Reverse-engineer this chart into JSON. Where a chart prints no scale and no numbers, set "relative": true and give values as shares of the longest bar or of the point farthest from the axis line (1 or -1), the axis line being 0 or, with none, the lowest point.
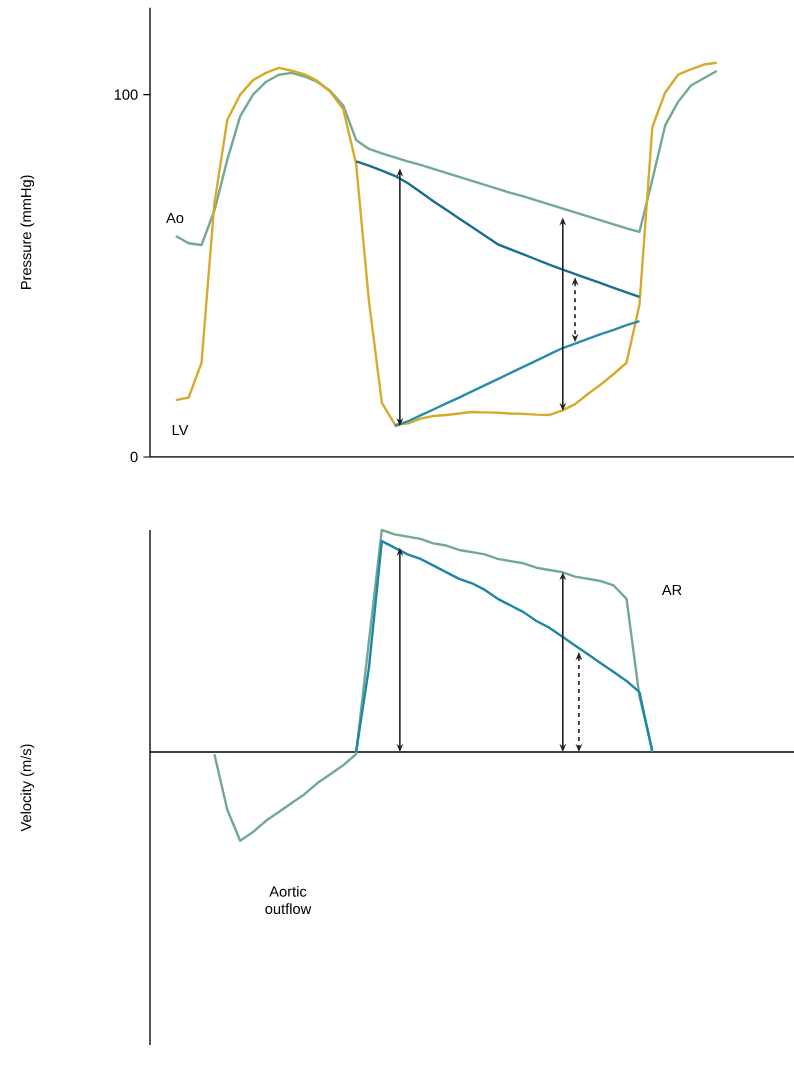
{
  "chart_data": [
    {
      "type": "line",
      "ylabel": "Pressure (mmHg)",
      "ylim": [
        0,
        124
      ],
      "yticks": [
        0,
        100
      ],
      "tick_labels": "y",
      "categories": [
        null,
        null,
        null,
        null,
        null,
        null,
        null,
        null,
        null,
        null,
        null,
        null,
        null,
        null,
        null,
        null,
        null,
        null,
        null,
        null,
        null,
        null,
        null,
        null,
        null,
        null,
        null,
        null,
        null,
        null,
        null,
        null,
        null,
        null,
        null,
        null,
        null,
        null,
        null,
        null,
        null,
        null,
        null,
        null,
        null,
        null,
        null,
        null,
        null,
        null,
        null
      ],
      "annotations": [
        "Ao",
        "LV"
      ],
      "series": [
        {
          "color": "#72a993",
          "values": [
            null,
            null,
            61,
            59,
            58.5,
            68,
            82,
            94,
            100,
            103.5,
            105.5,
            106,
            105,
            103.5,
            101,
            97,
            87.5,
            85,
            83.8,
            82.7,
            81.6,
            80.6,
            79.5,
            78.4,
            77.3,
            76.2,
            75.1,
            74,
            72.9,
            71.9,
            70.8,
            69.7,
            68.6,
            67.5,
            66.4,
            65.3,
            64.2,
            63.1,
            62.1,
            76.5,
            91.5,
            98,
            102.5,
            104.5,
            106.5,
            null,
            null,
            null,
            null,
            null,
            null
          ]
        },
        {
          "color": "#d8aa2c",
          "values": [
            null,
            null,
            15.7,
            16.4,
            26,
            70,
            93,
            100,
            104,
            106,
            107.4,
            106.6,
            105.6,
            103.8,
            100.8,
            96,
            81,
            43,
            15,
            9,
            9.2,
            10.6,
            11.3,
            11.6,
            12,
            12.4,
            12.3,
            12.2,
            12,
            11.9,
            11.7,
            11.6,
            12.8,
            14.6,
            17.4,
            20,
            22.9,
            26,
            42,
            91,
            100.6,
            105.5,
            107,
            108.3,
            108.8,
            null,
            null,
            null,
            null,
            null,
            null
          ]
        },
        {
          "color": "#1a6e8e",
          "values": [
            null,
            null,
            null,
            null,
            null,
            null,
            null,
            null,
            null,
            null,
            null,
            null,
            null,
            null,
            null,
            null,
            81.6,
            80.4,
            79,
            77.6,
            75.6,
            73.1,
            70.6,
            68.2,
            65.8,
            63.5,
            61.1,
            58.7,
            57.3,
            55.9,
            54.5,
            53.1,
            51.8,
            50.5,
            49.2,
            48,
            46.7,
            45.4,
            44.2,
            null,
            null,
            null,
            null,
            null,
            null,
            null,
            null,
            null,
            null,
            null,
            null
          ]
        },
        {
          "color": "#2a8bab",
          "values": [
            null,
            null,
            null,
            null,
            null,
            null,
            null,
            null,
            null,
            null,
            null,
            null,
            null,
            null,
            null,
            null,
            null,
            null,
            null,
            8.5,
            9.8,
            11.5,
            13.1,
            14.8,
            16.4,
            18.1,
            19.8,
            21.5,
            23.2,
            24.9,
            26.6,
            28.3,
            30,
            31.3,
            32.6,
            33.9,
            35.1,
            36.4,
            37.5,
            null,
            null,
            null,
            null,
            null,
            null,
            null,
            null,
            null,
            null,
            null,
            null
          ]
        }
      ]
    },
    {
      "type": "line",
      "ylabel": "Velocity (m/s)",
      "relative": true,
      "tick_labels": false,
      "categories": [
        null,
        null,
        null,
        null,
        null,
        null,
        null,
        null,
        null,
        null,
        null,
        null,
        null,
        null,
        null,
        null,
        null,
        null,
        null,
        null,
        null,
        null,
        null,
        null,
        null,
        null,
        null,
        null,
        null,
        null,
        null,
        null,
        null,
        null,
        null,
        null,
        null,
        null,
        null,
        null,
        null,
        null,
        null,
        null,
        null,
        null,
        null,
        null,
        null,
        null,
        null
      ],
      "annotations": [
        "AR",
        "Aortic outflow"
      ],
      "series": [
        {
          "color": "#72a993",
          "values": [
            null,
            null,
            null,
            null,
            null,
            -0.01,
            -0.26,
            -0.4,
            -0.36,
            -0.31,
            -0.27,
            -0.23,
            -0.19,
            -0.14,
            -0.1,
            -0.06,
            -0.01,
            0.5,
            1,
            0.98,
            0.97,
            0.96,
            0.94,
            0.93,
            0.91,
            0.9,
            0.89,
            0.87,
            0.86,
            0.85,
            0.83,
            0.82,
            0.81,
            0.79,
            0.78,
            0.77,
            0.75,
            0.69,
            0.25,
            0.01,
            null,
            null,
            null,
            null,
            null,
            null,
            null,
            null,
            null,
            null,
            null
          ]
        },
        {
          "color": "#1f86a6",
          "values": [
            null,
            null,
            null,
            null,
            null,
            null,
            null,
            null,
            null,
            null,
            null,
            null,
            null,
            null,
            null,
            null,
            0,
            0.38,
            0.95,
            0.92,
            0.89,
            0.87,
            0.84,
            0.81,
            0.78,
            0.76,
            0.73,
            0.69,
            0.66,
            0.63,
            0.59,
            0.56,
            0.52,
            0.48,
            0.44,
            0.4,
            0.36,
            0.32,
            0.27,
            0,
            null,
            null,
            null,
            null,
            null,
            null,
            null,
            null,
            null,
            null,
            null
          ]
        }
      ]
    }
  ]
}
